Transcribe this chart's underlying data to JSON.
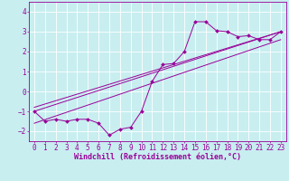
{
  "background_color": "#c8eef0",
  "grid_color": "#ffffff",
  "line_color": "#990099",
  "marker_color": "#990099",
  "xlabel": "Windchill (Refroidissement éolien,°C)",
  "xlabel_fontsize": 6.0,
  "tick_fontsize": 5.5,
  "xlim": [
    -0.5,
    23.5
  ],
  "ylim": [
    -2.5,
    4.5
  ],
  "yticks": [
    -2,
    -1,
    0,
    1,
    2,
    3,
    4
  ],
  "xticks": [
    0,
    1,
    2,
    3,
    4,
    5,
    6,
    7,
    8,
    9,
    10,
    11,
    12,
    13,
    14,
    15,
    16,
    17,
    18,
    19,
    20,
    21,
    22,
    23
  ],
  "series1_x": [
    0,
    1,
    2,
    3,
    4,
    5,
    6,
    7,
    8,
    9,
    10,
    11,
    12,
    13,
    14,
    15,
    16,
    17,
    18,
    19,
    20,
    21,
    22,
    23
  ],
  "series1_y": [
    -1.0,
    -1.5,
    -1.4,
    -1.5,
    -1.4,
    -1.4,
    -1.6,
    -2.2,
    -1.9,
    -1.8,
    -1.0,
    0.5,
    1.35,
    1.4,
    2.0,
    3.5,
    3.5,
    3.05,
    3.0,
    2.75,
    2.8,
    2.6,
    2.6,
    3.0
  ],
  "series2_x": [
    0,
    23
  ],
  "series2_y": [
    -1.0,
    3.0
  ],
  "series3_x": [
    0,
    23
  ],
  "series3_y": [
    -1.6,
    2.6
  ],
  "series4_x": [
    0,
    23
  ],
  "series4_y": [
    -0.8,
    3.0
  ],
  "lw": 0.7,
  "ms": 2.0
}
